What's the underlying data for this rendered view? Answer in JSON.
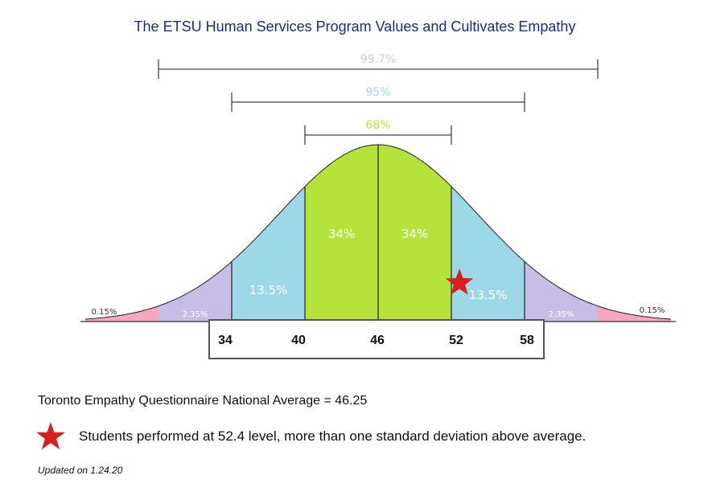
{
  "chart_data": {
    "type": "area",
    "title": "The ETSU Human Services Program Values and Cultivates Empathy",
    "distribution": "normal",
    "mean": 46,
    "sd": 6,
    "x_ticks": [
      "34",
      "40",
      "46",
      "52",
      "58"
    ],
    "x_tick_values": [
      34,
      40,
      46,
      52,
      58
    ],
    "segments": [
      {
        "name": "left-tail",
        "from": 22,
        "to": 28,
        "label": "0.15%",
        "color": "#f4a7bd"
      },
      {
        "name": "left-2sd",
        "from": 28,
        "to": 34,
        "label": "2.35%",
        "color": "#c7bde6"
      },
      {
        "name": "left-1sd",
        "from": 34,
        "to": 40,
        "label": "13.5%",
        "color": "#9dd8e8"
      },
      {
        "name": "left-center",
        "from": 40,
        "to": 46,
        "label": "34%",
        "color": "#b5e33a"
      },
      {
        "name": "right-center",
        "from": 46,
        "to": 52,
        "label": "34%",
        "color": "#b5e33a"
      },
      {
        "name": "right-1sd",
        "from": 52,
        "to": 58,
        "label": "13.5%",
        "color": "#9dd8e8"
      },
      {
        "name": "right-2sd",
        "from": 58,
        "to": 64,
        "label": "2.35%",
        "color": "#c7bde6"
      },
      {
        "name": "right-tail",
        "from": 64,
        "to": 70,
        "label": "0.15%",
        "color": "#f4a7bd"
      }
    ],
    "ranges": [
      {
        "label": "99.7%",
        "from": 28,
        "to": 64,
        "color": "#cfc6ea"
      },
      {
        "label": "95%",
        "from": 34,
        "to": 58,
        "color": "#9fd9ec"
      },
      {
        "label": "68%",
        "from": 40,
        "to": 52,
        "color": "#b5e33a"
      }
    ],
    "marker": {
      "label": "star",
      "value": 52.4,
      "color": "#d92020"
    }
  },
  "notes": {
    "national_average": "Toronto Empathy Questionnaire National Average = 46.25",
    "students": "Students performed at 52.4 level, more than one standard deviation above average.",
    "updated": "Updated on 1.24.20"
  }
}
